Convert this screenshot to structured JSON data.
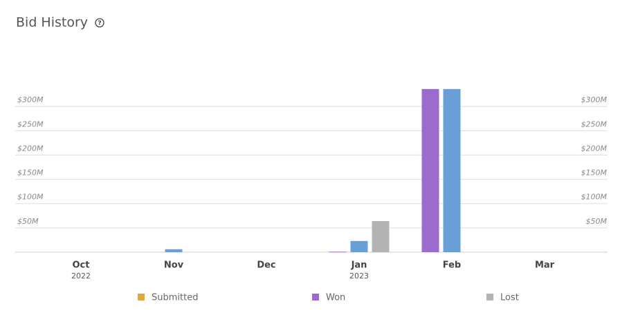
{
  "chart_data": {
    "type": "bar",
    "title": "Bid History",
    "categories": [
      "Oct",
      "Nov",
      "Dec",
      "Jan",
      "Feb",
      "Mar"
    ],
    "category_sublabels": [
      "2022",
      null,
      null,
      "2023",
      null,
      null
    ],
    "series": [
      {
        "name": "Submitted",
        "color": "#e0a83a",
        "values": [
          null,
          null,
          null,
          null,
          null,
          null
        ]
      },
      {
        "name": "Won",
        "color": "#9b6bcf",
        "values": [
          null,
          null,
          null,
          1000000,
          336000000,
          null
        ]
      },
      {
        "color": "#679fd6",
        "values": [
          null,
          6000000,
          null,
          23000000,
          336000000,
          null
        ]
      },
      {
        "name": "Lost",
        "color": "#b3b3b3",
        "values": [
          null,
          null,
          null,
          64000000,
          null,
          null
        ]
      }
    ],
    "ylim": [
      0,
      350000000
    ],
    "yticks": [
      {
        "value": 50000000,
        "label": "$50M"
      },
      {
        "value": 100000000,
        "label": "$100M"
      },
      {
        "value": 150000000,
        "label": "$150M"
      },
      {
        "value": 200000000,
        "label": "$200M"
      },
      {
        "value": 250000000,
        "label": "$250M"
      },
      {
        "value": 300000000,
        "label": "$300M"
      }
    ],
    "grid": true,
    "legend": "bottom"
  }
}
